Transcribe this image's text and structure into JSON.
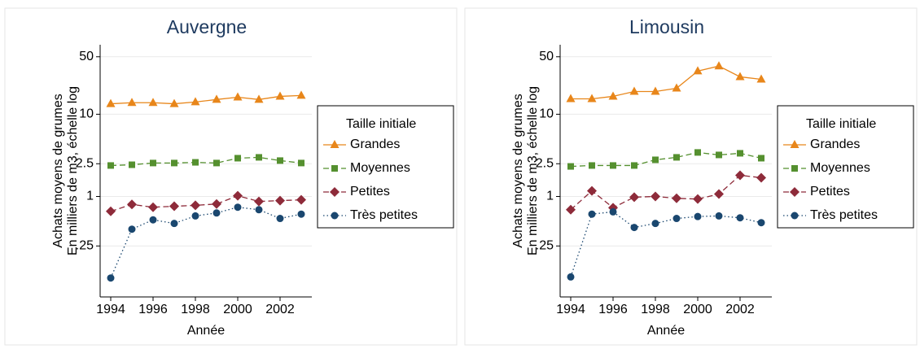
{
  "chart_data": [
    {
      "type": "line",
      "title": "Auvergne",
      "ylabel": [
        "Achats moyens de grumes",
        "En milliers de m3, échelle log"
      ],
      "xlabel": "Année",
      "log_y": true,
      "grid": true,
      "legend_title": "Taille initiale",
      "x": [
        1994,
        1995,
        1996,
        1997,
        1998,
        1999,
        2000,
        2001,
        2002,
        2003
      ],
      "xlim": [
        1993.5,
        2003.5
      ],
      "xticks": [
        1994,
        1996,
        1998,
        2000,
        2002
      ],
      "ylim": [
        0.06,
        70
      ],
      "yticks": [
        50,
        10,
        2.5,
        1,
        {
          "value": 0.25,
          "label": ".25"
        }
      ],
      "series": [
        {
          "name": "Grandes",
          "color": "#e8861a",
          "marker": "triangle",
          "dash": "solid",
          "values": [
            13.4,
            13.8,
            13.8,
            13.4,
            14.1,
            15.1,
            16.1,
            15.1,
            16.5,
            16.9
          ]
        },
        {
          "name": "Moyennes",
          "color": "#55902f",
          "marker": "square",
          "dash": "dashed",
          "values": [
            2.38,
            2.43,
            2.55,
            2.55,
            2.6,
            2.55,
            2.92,
            2.99,
            2.73,
            2.55
          ]
        },
        {
          "name": "Petites",
          "color": "#8e2b3a",
          "marker": "diamond",
          "dash": "dashed",
          "values": [
            0.66,
            0.8,
            0.74,
            0.76,
            0.78,
            0.81,
            1.02,
            0.87,
            0.89,
            0.91
          ]
        },
        {
          "name": "Très petites",
          "color": "#1a476f",
          "marker": "circle",
          "dash": "dotted",
          "values": [
            0.102,
            0.4,
            0.52,
            0.47,
            0.58,
            0.63,
            0.74,
            0.69,
            0.54,
            0.61
          ]
        }
      ]
    },
    {
      "type": "line",
      "title": "Limousin",
      "ylabel": [
        "Achats moyens de grumes",
        "En milliers de m3, échelle log"
      ],
      "xlabel": "Année",
      "log_y": true,
      "grid": true,
      "legend_title": "Taille initiale",
      "x": [
        1994,
        1995,
        1996,
        1997,
        1998,
        1999,
        2000,
        2001,
        2002,
        2003
      ],
      "xlim": [
        1993.5,
        2003.5
      ],
      "xticks": [
        1994,
        1996,
        1998,
        2000,
        2002
      ],
      "ylim": [
        0.06,
        70
      ],
      "yticks": [
        50,
        10,
        2.5,
        1,
        {
          "value": 0.25,
          "label": ".25"
        }
      ],
      "series": [
        {
          "name": "Grandes",
          "color": "#e8861a",
          "marker": "triangle",
          "dash": "solid",
          "values": [
            15.4,
            15.4,
            16.5,
            18.9,
            18.9,
            20.7,
            33.5,
            38.5,
            28.5,
            26.6
          ]
        },
        {
          "name": "Moyennes",
          "color": "#55902f",
          "marker": "square",
          "dash": "dashed",
          "values": [
            2.32,
            2.38,
            2.38,
            2.38,
            2.79,
            2.99,
            3.43,
            3.2,
            3.35,
            2.92
          ]
        },
        {
          "name": "Petites",
          "color": "#8e2b3a",
          "marker": "diamond",
          "dash": "dashed",
          "values": [
            0.69,
            1.17,
            0.73,
            0.98,
            1.0,
            0.95,
            0.93,
            1.07,
            1.81,
            1.69
          ]
        },
        {
          "name": "Très petites",
          "color": "#1a476f",
          "marker": "circle",
          "dash": "dotted",
          "values": [
            0.105,
            0.61,
            0.65,
            0.42,
            0.47,
            0.54,
            0.57,
            0.58,
            0.55,
            0.48
          ]
        }
      ]
    }
  ]
}
